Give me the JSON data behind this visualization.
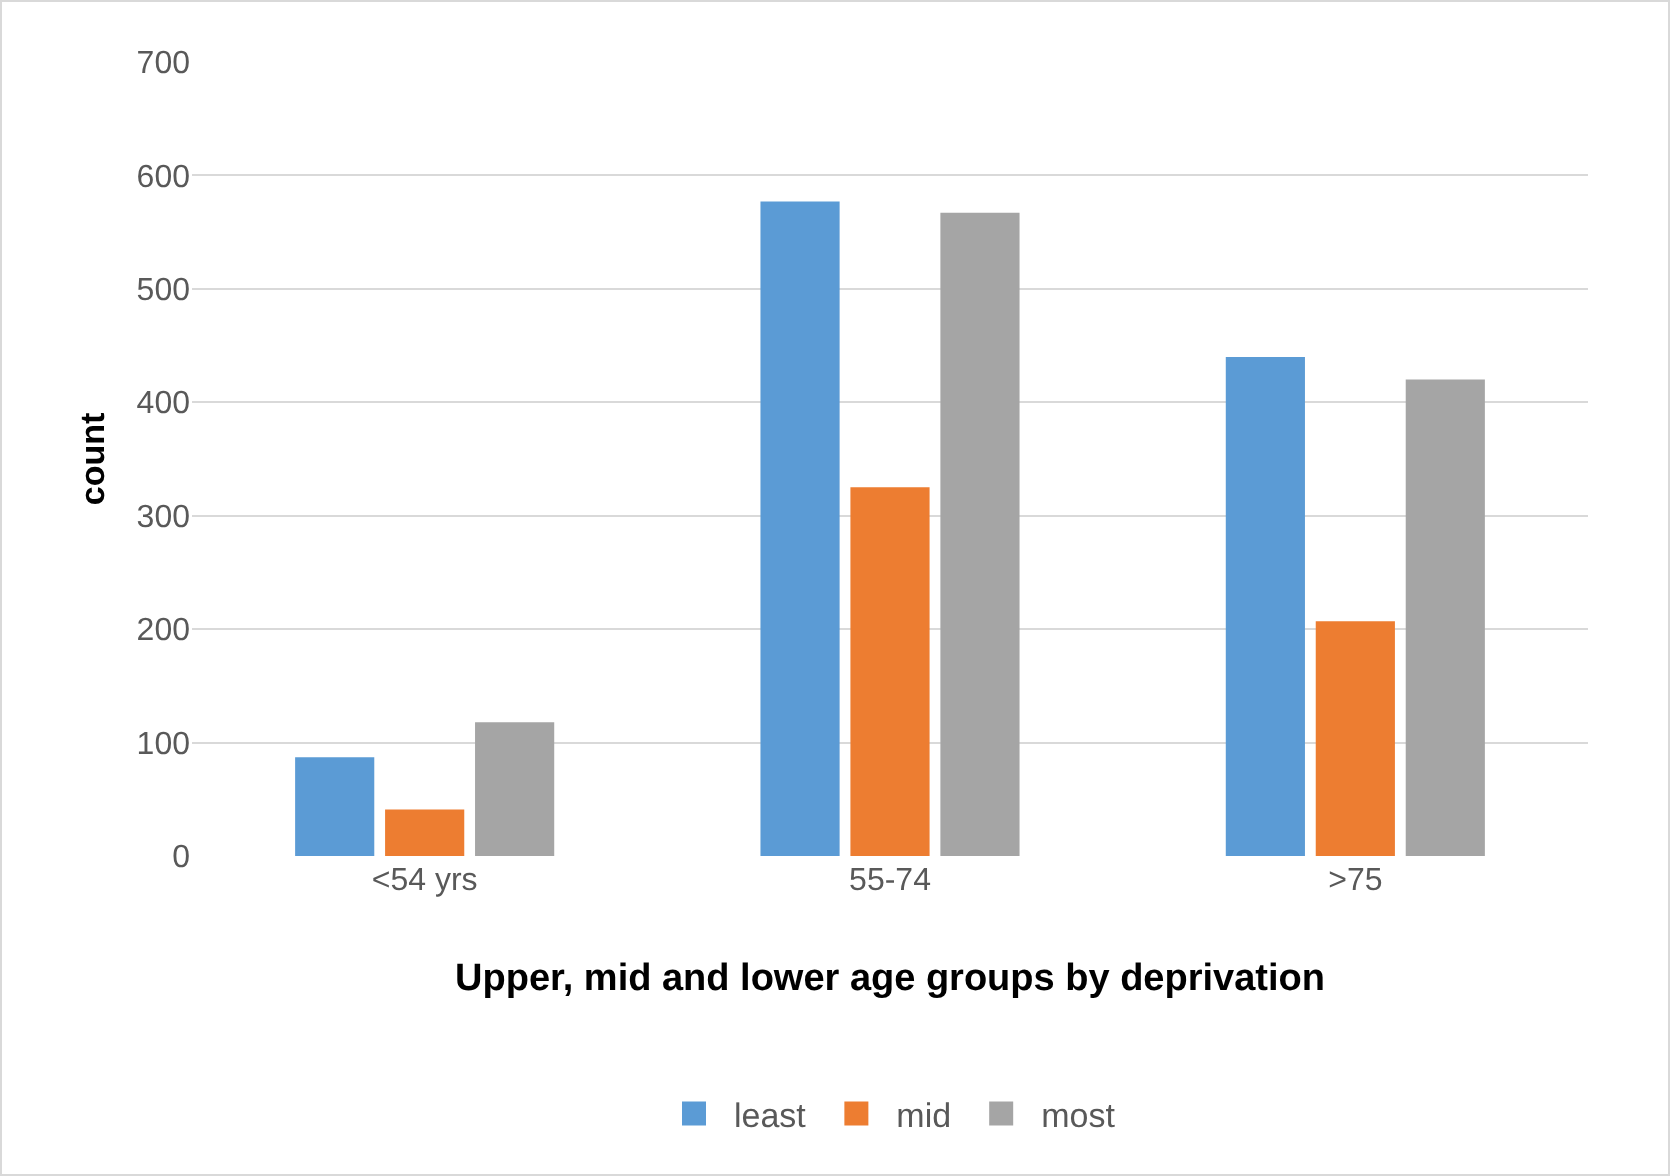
{
  "chart_data": {
    "type": "bar",
    "xlabel": "Upper, mid and lower age groups by deprivation",
    "ylabel": "count",
    "categories": [
      "<54 yrs",
      "55-74",
      ">75"
    ],
    "series": [
      {
        "name": "least",
        "color": "#5b9bd5",
        "values": [
          87,
          577,
          440
        ]
      },
      {
        "name": "mid",
        "color": "#ed7d31",
        "values": [
          41,
          325,
          207
        ]
      },
      {
        "name": "most",
        "color": "#a5a5a5",
        "values": [
          118,
          567,
          420
        ]
      }
    ],
    "ylim": [
      0,
      700
    ],
    "yticks": [
      0,
      100,
      200,
      300,
      400,
      500,
      600,
      700
    ],
    "grid": "y",
    "legend": "bottom"
  }
}
